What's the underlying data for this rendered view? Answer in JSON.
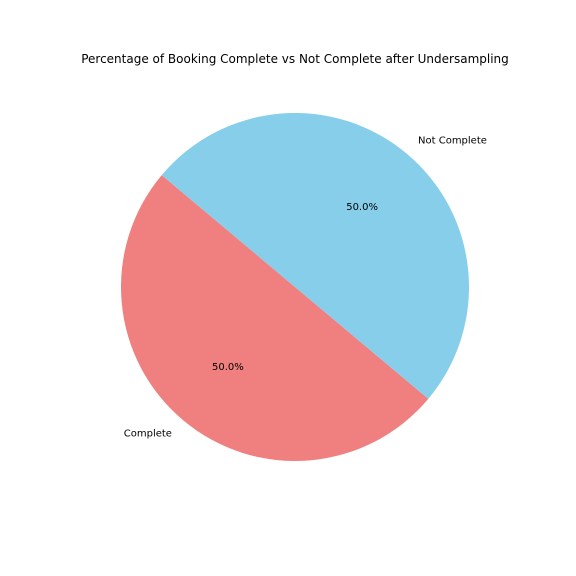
{
  "chart_data": {
    "type": "pie",
    "title": "Percentage of Booking Complete vs Not Complete after Undersampling",
    "labels": [
      "Complete",
      "Not Complete"
    ],
    "values": [
      50.0,
      50.0
    ],
    "percent_labels": [
      "50.0%",
      "50.0%"
    ],
    "colors": [
      "#f08080",
      "#87ceeb"
    ],
    "start_angle_deg": 140,
    "direction": "counterclockwise",
    "legend": "none"
  }
}
